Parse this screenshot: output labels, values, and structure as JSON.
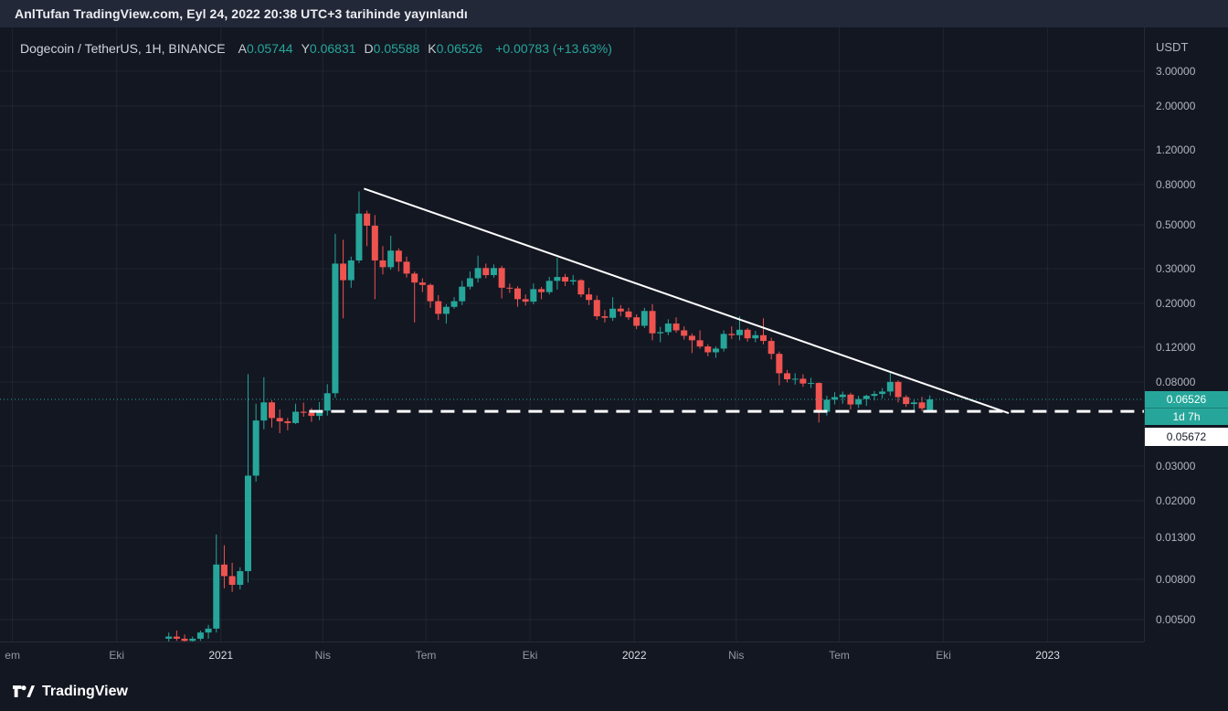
{
  "publish_bar": {
    "text": "AnlTufan TradingView.com, Eyl 24, 2022 20:38 UTC+3 tarihinde yayınlandı"
  },
  "header": {
    "title": "Dogecoin / TetherUS, 1H, BINANCE",
    "fields": [
      {
        "label": "A",
        "value": "0.05744"
      },
      {
        "label": "Y",
        "value": "0.06831"
      },
      {
        "label": "D",
        "value": "0.05588"
      },
      {
        "label": "K",
        "value": "0.06526"
      }
    ],
    "change": "+0.00783 (+13.63%)"
  },
  "price_axis": {
    "currency": "USDT",
    "last_price_badge": {
      "price": "0.06526",
      "countdown": "1d 7h",
      "color": "#26a69a"
    },
    "level_badge": {
      "price": "0.05672",
      "color": "#ffffff"
    }
  },
  "footer": {
    "logo_text": "TradingView"
  },
  "chart_data": {
    "type": "candlestick",
    "title": "Dogecoin / TetherUS, 1H, BINANCE",
    "scale": "log",
    "up_color": "#26a69a",
    "down_color": "#ef5350",
    "grid_color": "rgba(255,255,255,0.06)",
    "x_domain": [
      "2020-06-20",
      "2023-03-27"
    ],
    "y_domain_log": [
      0.00387,
      5.0
    ],
    "price_ticks": [
      {
        "label": "3.00000",
        "value": 3.0
      },
      {
        "label": "2.00000",
        "value": 2.0
      },
      {
        "label": "1.20000",
        "value": 1.2
      },
      {
        "label": "0.80000",
        "value": 0.8
      },
      {
        "label": "0.50000",
        "value": 0.5
      },
      {
        "label": "0.30000",
        "value": 0.3
      },
      {
        "label": "0.20000",
        "value": 0.2
      },
      {
        "label": "0.12000",
        "value": 0.12
      },
      {
        "label": "0.08000",
        "value": 0.08
      },
      {
        "label": "0.03000",
        "value": 0.03
      },
      {
        "label": "0.02000",
        "value": 0.02
      },
      {
        "label": "0.01300",
        "value": 0.013
      },
      {
        "label": "0.00800",
        "value": 0.008
      },
      {
        "label": "0.00500",
        "value": 0.005
      }
    ],
    "time_ticks": [
      {
        "label": "em",
        "date": "2020-07-01",
        "major": false
      },
      {
        "label": "Eki",
        "date": "2020-10-01",
        "major": false
      },
      {
        "label": "2021",
        "date": "2021-01-01",
        "major": true
      },
      {
        "label": "Nis",
        "date": "2021-04-01",
        "major": false
      },
      {
        "label": "Tem",
        "date": "2021-07-01",
        "major": false
      },
      {
        "label": "Eki",
        "date": "2021-10-01",
        "major": false
      },
      {
        "label": "2022",
        "date": "2022-01-01",
        "major": true
      },
      {
        "label": "Nis",
        "date": "2022-04-01",
        "major": false
      },
      {
        "label": "Tem",
        "date": "2022-07-01",
        "major": false
      },
      {
        "label": "Eki",
        "date": "2022-10-01",
        "major": false
      },
      {
        "label": "2023",
        "date": "2023-01-01",
        "major": true
      }
    ],
    "last_bar": {
      "open": 0.05744,
      "high": 0.06831,
      "low": 0.05588,
      "close": 0.06526,
      "change": 0.00783,
      "change_pct": 13.63
    },
    "last_price_line": {
      "price": 0.06526,
      "color": "#26a69a",
      "style": "dotted"
    },
    "support_line": {
      "price": 0.05672,
      "from_date": "2021-03-20",
      "style": "dashed",
      "color": "#ffffff",
      "width": 3
    },
    "trendline": {
      "from": {
        "date": "2021-05-08",
        "price": 0.76
      },
      "to": {
        "date": "2022-11-27",
        "price": 0.0557
      },
      "color": "#ffffff",
      "width": 2
    },
    "candles": [
      [
        "2020-11-16",
        0.004,
        0.0043,
        0.0037,
        0.0041
      ],
      [
        "2020-11-23",
        0.0041,
        0.0044,
        0.0039,
        0.004
      ],
      [
        "2020-11-30",
        0.004,
        0.0042,
        0.0037,
        0.0039
      ],
      [
        "2020-12-07",
        0.0039,
        0.0041,
        0.0037,
        0.004
      ],
      [
        "2020-12-14",
        0.004,
        0.0044,
        0.0039,
        0.0043
      ],
      [
        "2020-12-21",
        0.0043,
        0.0047,
        0.004,
        0.0045
      ],
      [
        "2020-12-28",
        0.0045,
        0.0135,
        0.0043,
        0.0095
      ],
      [
        "2021-01-04",
        0.0095,
        0.0119,
        0.0072,
        0.0083
      ],
      [
        "2021-01-11",
        0.0083,
        0.0097,
        0.0069,
        0.0075
      ],
      [
        "2021-01-18",
        0.0075,
        0.0092,
        0.0071,
        0.0088
      ],
      [
        "2021-01-25",
        0.0088,
        0.0876,
        0.0077,
        0.0268
      ],
      [
        "2021-02-01",
        0.0268,
        0.062,
        0.025,
        0.051
      ],
      [
        "2021-02-08",
        0.051,
        0.0845,
        0.046,
        0.063
      ],
      [
        "2021-02-15",
        0.063,
        0.0645,
        0.047,
        0.0525
      ],
      [
        "2021-02-22",
        0.0525,
        0.058,
        0.044,
        0.0505
      ],
      [
        "2021-03-01",
        0.0505,
        0.0525,
        0.0455,
        0.0495
      ],
      [
        "2021-03-08",
        0.0495,
        0.062,
        0.049,
        0.0565
      ],
      [
        "2021-03-15",
        0.0565,
        0.0628,
        0.0533,
        0.0558
      ],
      [
        "2021-03-22",
        0.0558,
        0.059,
        0.0502,
        0.0538
      ],
      [
        "2021-03-29",
        0.0538,
        0.0632,
        0.0512,
        0.0572
      ],
      [
        "2021-04-05",
        0.0572,
        0.0779,
        0.054,
        0.0701
      ],
      [
        "2021-04-12",
        0.0701,
        0.45,
        0.0665,
        0.318
      ],
      [
        "2021-04-19",
        0.318,
        0.42,
        0.168,
        0.262
      ],
      [
        "2021-04-26",
        0.262,
        0.345,
        0.24,
        0.33
      ],
      [
        "2021-05-03",
        0.33,
        0.7376,
        0.32,
        0.57
      ],
      [
        "2021-05-10",
        0.57,
        0.59,
        0.39,
        0.495
      ],
      [
        "2021-05-17",
        0.495,
        0.56,
        0.21,
        0.33
      ],
      [
        "2021-05-24",
        0.33,
        0.39,
        0.28,
        0.305
      ],
      [
        "2021-05-31",
        0.305,
        0.44,
        0.296,
        0.37
      ],
      [
        "2021-06-07",
        0.37,
        0.38,
        0.29,
        0.325
      ],
      [
        "2021-06-14",
        0.325,
        0.345,
        0.27,
        0.283
      ],
      [
        "2021-06-21",
        0.283,
        0.29,
        0.16,
        0.255
      ],
      [
        "2021-06-28",
        0.255,
        0.268,
        0.228,
        0.248
      ],
      [
        "2021-07-05",
        0.248,
        0.252,
        0.19,
        0.205
      ],
      [
        "2021-07-12",
        0.205,
        0.22,
        0.165,
        0.177
      ],
      [
        "2021-07-19",
        0.177,
        0.198,
        0.158,
        0.192
      ],
      [
        "2021-07-26",
        0.192,
        0.215,
        0.188,
        0.205
      ],
      [
        "2021-08-02",
        0.205,
        0.26,
        0.196,
        0.243
      ],
      [
        "2021-08-09",
        0.243,
        0.29,
        0.235,
        0.268
      ],
      [
        "2021-08-16",
        0.268,
        0.349,
        0.255,
        0.302
      ],
      [
        "2021-08-23",
        0.302,
        0.318,
        0.268,
        0.278
      ],
      [
        "2021-08-30",
        0.278,
        0.315,
        0.27,
        0.302
      ],
      [
        "2021-09-06",
        0.302,
        0.31,
        0.212,
        0.24
      ],
      [
        "2021-09-13",
        0.24,
        0.252,
        0.226,
        0.238
      ],
      [
        "2021-09-20",
        0.238,
        0.244,
        0.192,
        0.21
      ],
      [
        "2021-09-27",
        0.21,
        0.222,
        0.195,
        0.204
      ],
      [
        "2021-10-04",
        0.204,
        0.252,
        0.198,
        0.236
      ],
      [
        "2021-10-11",
        0.236,
        0.242,
        0.21,
        0.228
      ],
      [
        "2021-10-18",
        0.228,
        0.272,
        0.222,
        0.26
      ],
      [
        "2021-10-25",
        0.26,
        0.34,
        0.235,
        0.272
      ],
      [
        "2021-11-01",
        0.272,
        0.282,
        0.245,
        0.258
      ],
      [
        "2021-11-08",
        0.258,
        0.278,
        0.248,
        0.262
      ],
      [
        "2021-11-15",
        0.262,
        0.265,
        0.215,
        0.222
      ],
      [
        "2021-11-22",
        0.222,
        0.24,
        0.196,
        0.208
      ],
      [
        "2021-11-29",
        0.208,
        0.219,
        0.165,
        0.172
      ],
      [
        "2021-12-06",
        0.172,
        0.185,
        0.16,
        0.169
      ],
      [
        "2021-12-13",
        0.169,
        0.215,
        0.163,
        0.188
      ],
      [
        "2021-12-20",
        0.188,
        0.196,
        0.172,
        0.182
      ],
      [
        "2021-12-27",
        0.182,
        0.19,
        0.165,
        0.17
      ],
      [
        "2022-01-03",
        0.17,
        0.176,
        0.148,
        0.154
      ],
      [
        "2022-01-10",
        0.154,
        0.19,
        0.15,
        0.183
      ],
      [
        "2022-01-17",
        0.183,
        0.198,
        0.13,
        0.141
      ],
      [
        "2022-01-24",
        0.141,
        0.152,
        0.127,
        0.143
      ],
      [
        "2022-01-31",
        0.143,
        0.166,
        0.138,
        0.158
      ],
      [
        "2022-02-07",
        0.158,
        0.17,
        0.142,
        0.146
      ],
      [
        "2022-02-14",
        0.146,
        0.153,
        0.131,
        0.137
      ],
      [
        "2022-02-21",
        0.137,
        0.141,
        0.112,
        0.13
      ],
      [
        "2022-02-28",
        0.13,
        0.146,
        0.118,
        0.121
      ],
      [
        "2022-03-07",
        0.121,
        0.124,
        0.108,
        0.113
      ],
      [
        "2022-03-14",
        0.113,
        0.121,
        0.106,
        0.118
      ],
      [
        "2022-03-21",
        0.118,
        0.146,
        0.114,
        0.14
      ],
      [
        "2022-03-28",
        0.14,
        0.153,
        0.132,
        0.138
      ],
      [
        "2022-04-04",
        0.138,
        0.172,
        0.13,
        0.147
      ],
      [
        "2022-04-11",
        0.147,
        0.15,
        0.128,
        0.133
      ],
      [
        "2022-04-18",
        0.133,
        0.145,
        0.127,
        0.138
      ],
      [
        "2022-04-25",
        0.138,
        0.168,
        0.124,
        0.129
      ],
      [
        "2022-05-02",
        0.129,
        0.134,
        0.104,
        0.111
      ],
      [
        "2022-05-09",
        0.111,
        0.114,
        0.077,
        0.0885
      ],
      [
        "2022-05-16",
        0.0885,
        0.092,
        0.0795,
        0.0825
      ],
      [
        "2022-05-23",
        0.0825,
        0.0885,
        0.0775,
        0.083
      ],
      [
        "2022-05-30",
        0.083,
        0.0875,
        0.0755,
        0.0785
      ],
      [
        "2022-06-06",
        0.0785,
        0.084,
        0.0745,
        0.079
      ],
      [
        "2022-06-13",
        0.079,
        0.0795,
        0.0498,
        0.0565
      ],
      [
        "2022-06-20",
        0.0565,
        0.068,
        0.054,
        0.065
      ],
      [
        "2022-06-27",
        0.065,
        0.071,
        0.0615,
        0.067
      ],
      [
        "2022-07-04",
        0.067,
        0.0715,
        0.062,
        0.069
      ],
      [
        "2022-07-11",
        0.069,
        0.0705,
        0.058,
        0.0615
      ],
      [
        "2022-07-18",
        0.0615,
        0.068,
        0.059,
        0.0655
      ],
      [
        "2022-07-25",
        0.0655,
        0.069,
        0.0605,
        0.068
      ],
      [
        "2022-08-01",
        0.068,
        0.072,
        0.0645,
        0.0695
      ],
      [
        "2022-08-08",
        0.0695,
        0.0745,
        0.066,
        0.0715
      ],
      [
        "2022-08-15",
        0.0715,
        0.0888,
        0.068,
        0.08
      ],
      [
        "2022-08-22",
        0.08,
        0.0815,
        0.063,
        0.067
      ],
      [
        "2022-08-29",
        0.067,
        0.0685,
        0.0598,
        0.0618
      ],
      [
        "2022-09-05",
        0.0618,
        0.0648,
        0.0563,
        0.063
      ],
      [
        "2022-09-12",
        0.063,
        0.0672,
        0.0568,
        0.0588
      ],
      [
        "2022-09-19",
        0.05744,
        0.06831,
        0.05588,
        0.06526
      ]
    ]
  }
}
